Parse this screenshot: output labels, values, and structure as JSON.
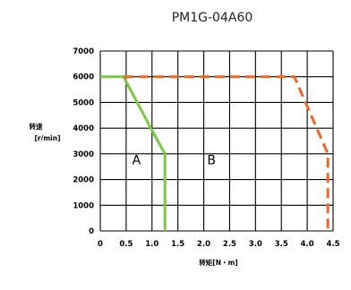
{
  "chart_data": {
    "type": "line",
    "title": "PM1G-04A60",
    "ylabel_line1": "转速",
    "ylabel_line2": "[r/min]",
    "xlabel": "转矩[N・m]",
    "xlim": [
      0,
      4.5
    ],
    "ylim": [
      0,
      7000
    ],
    "x_ticks": [
      "0",
      "0.5",
      "1.0",
      "1.5",
      "2.0",
      "2.5",
      "3.0",
      "3.5",
      "4.0",
      "4.5"
    ],
    "y_ticks": [
      "0",
      "1000",
      "2000",
      "3000",
      "4000",
      "5000",
      "6000",
      "7000"
    ],
    "grid": true,
    "series": [
      {
        "region": "A",
        "color": "#7ac943",
        "style": "solid",
        "points": [
          [
            0,
            6000
          ],
          [
            0.45,
            6000
          ],
          [
            0.95,
            4100
          ],
          [
            1.25,
            3000
          ],
          [
            1.25,
            0
          ]
        ]
      },
      {
        "region": "B",
        "color": "#f26522",
        "style": "dashed",
        "points": [
          [
            0.45,
            6000
          ],
          [
            3.75,
            6000
          ],
          [
            4.4,
            3000
          ],
          [
            4.4,
            0
          ]
        ]
      }
    ],
    "region_labels": [
      {
        "text": "A",
        "x": 0.7,
        "y": 2600
      },
      {
        "text": "B",
        "x": 2.15,
        "y": 2600
      }
    ]
  }
}
